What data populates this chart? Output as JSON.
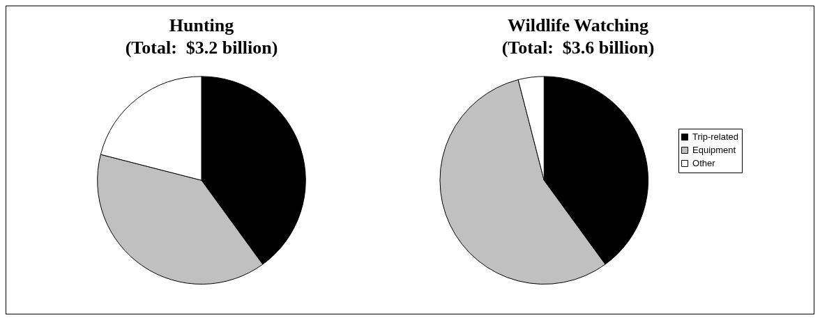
{
  "chart_data": [
    {
      "type": "pie",
      "title": "Hunting",
      "subtitle": "(Total:  $3.2 billion)",
      "categories": [
        null,
        null,
        null
      ],
      "values": [
        40,
        39,
        21
      ],
      "colors": [
        "#000000",
        "#c0c0c0",
        "#ffffff"
      ]
    },
    {
      "type": "pie",
      "title": "Wildlife Watching",
      "subtitle": "(Total:  $3.6 billion)",
      "categories": [
        "Trip-related",
        "Equipment",
        "Other"
      ],
      "values": [
        40,
        56,
        4
      ],
      "colors": [
        "#000000",
        "#c0c0c0",
        "#ffffff"
      ],
      "legend": "right"
    }
  ]
}
